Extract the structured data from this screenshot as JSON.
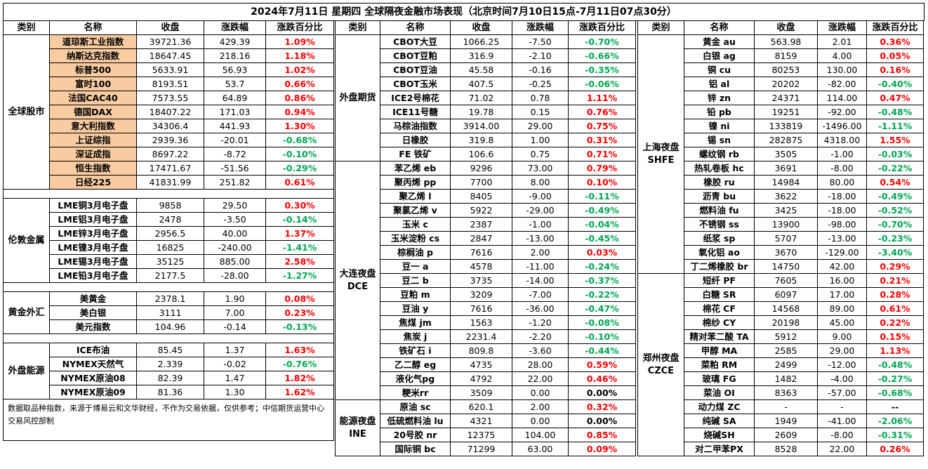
{
  "title": "2024年7月11日 星期四 全球隔夜金融市场表现（北京时间7月10日15点-7月11日07点30分）",
  "headers": [
    "类别",
    "名称",
    "收盘",
    "涨跌幅",
    "涨跌百分比"
  ],
  "colors": {
    "up": "#ff0000",
    "down": "#00a651",
    "highlight": "#f8cba1"
  },
  "left": {
    "groups": [
      {
        "category": "全球股市",
        "highlight": true,
        "rows": [
          {
            "name": "道琼斯工业指数",
            "close": "39721.36",
            "change": "429.39",
            "pct": "1.09%",
            "dir": "up"
          },
          {
            "name": "纳斯达克指数",
            "close": "18647.45",
            "change": "218.16",
            "pct": "1.18%",
            "dir": "up"
          },
          {
            "name": "标普500",
            "close": "5633.91",
            "change": "56.93",
            "pct": "1.02%",
            "dir": "up"
          },
          {
            "name": "富时100",
            "close": "8193.51",
            "change": "53.7",
            "pct": "0.66%",
            "dir": "up"
          },
          {
            "name": "法国CAC40",
            "close": "7573.55",
            "change": "64.89",
            "pct": "0.86%",
            "dir": "up"
          },
          {
            "name": "德国DAX",
            "close": "18407.22",
            "change": "171.03",
            "pct": "0.94%",
            "dir": "up"
          },
          {
            "name": "意大利指数",
            "close": "34306.4",
            "change": "441.93",
            "pct": "1.30%",
            "dir": "up"
          },
          {
            "name": "上证综指",
            "close": "2939.36",
            "change": "-20.01",
            "pct": "-0.68%",
            "dir": "down"
          },
          {
            "name": "深证成指",
            "close": "8697.22",
            "change": "-8.72",
            "pct": "-0.10%",
            "dir": "down"
          },
          {
            "name": "恒生指数",
            "close": "17471.67",
            "change": "-51.56",
            "pct": "-0.29%",
            "dir": "down"
          },
          {
            "name": "日经225",
            "close": "41831.99",
            "change": "251.82",
            "pct": "0.61%",
            "dir": "up"
          }
        ]
      },
      {
        "category": "伦敦金属",
        "highlight": false,
        "rows": [
          {
            "name": "LME铜3月电子盘",
            "close": "9858",
            "change": "29.50",
            "pct": "0.30%",
            "dir": "up"
          },
          {
            "name": "LME铝3月电子盘",
            "close": "2478",
            "change": "-3.50",
            "pct": "-0.14%",
            "dir": "down"
          },
          {
            "name": "LME锌3月电子盘",
            "close": "2956.5",
            "change": "40.00",
            "pct": "1.37%",
            "dir": "up"
          },
          {
            "name": "LME镍3月电子盘",
            "close": "16825",
            "change": "-240.00",
            "pct": "-1.41%",
            "dir": "down"
          },
          {
            "name": "LME锡3月电子盘",
            "close": "35125",
            "change": "885.00",
            "pct": "2.58%",
            "dir": "up"
          },
          {
            "name": "LME铅3月电子盘",
            "close": "2177.5",
            "change": "-28.00",
            "pct": "-1.27%",
            "dir": "down"
          }
        ]
      },
      {
        "category": "黄金外汇",
        "highlight": false,
        "rows": [
          {
            "name": "美黄金",
            "close": "2378.1",
            "change": "1.90",
            "pct": "0.08%",
            "dir": "up"
          },
          {
            "name": "美白银",
            "close": "3111",
            "change": "7.00",
            "pct": "0.23%",
            "dir": "up"
          },
          {
            "name": "美元指数",
            "close": "104.96",
            "change": "-0.14",
            "pct": "-0.13%",
            "dir": "down"
          }
        ]
      },
      {
        "category": "外盘能源",
        "highlight": false,
        "rows": [
          {
            "name": "ICE布油",
            "close": "85.45",
            "change": "1.37",
            "pct": "1.63%",
            "dir": "up"
          },
          {
            "name": "NYMEX天然气",
            "close": "2.339",
            "change": "-0.02",
            "pct": "-0.76%",
            "dir": "down"
          },
          {
            "name": "NYMEX原油08",
            "close": "82.39",
            "change": "1.47",
            "pct": "1.82%",
            "dir": "up"
          },
          {
            "name": "NYMEX原油09",
            "close": "81.36",
            "change": "1.30",
            "pct": "1.62%",
            "dir": "up"
          }
        ]
      }
    ],
    "note": "数据取品种指数，来源于博易云和文华财经，不作为交易依据，仅供参考；中信期货运营中心交易风控部制"
  },
  "middle": {
    "groups": [
      {
        "category": "外盘期货",
        "rows": [
          {
            "name": "CBOT大豆",
            "close": "1066.25",
            "change": "-7.50",
            "pct": "-0.70%",
            "dir": "down"
          },
          {
            "name": "CBOT豆粕",
            "close": "316.9",
            "change": "-2.10",
            "pct": "-0.66%",
            "dir": "down"
          },
          {
            "name": "CBOT豆油",
            "close": "45.58",
            "change": "-0.16",
            "pct": "-0.35%",
            "dir": "down"
          },
          {
            "name": "CBOT玉米",
            "close": "407.5",
            "change": "-0.25",
            "pct": "-0.06%",
            "dir": "down"
          },
          {
            "name": "ICE2号棉花",
            "close": "71.02",
            "change": "0.78",
            "pct": "1.11%",
            "dir": "up"
          },
          {
            "name": "ICE11号糖",
            "close": "19.78",
            "change": "0.15",
            "pct": "0.76%",
            "dir": "up"
          },
          {
            "name": "马棕油指数",
            "close": "3914.00",
            "change": "29.00",
            "pct": "0.75%",
            "dir": "up"
          },
          {
            "name": "日橡胶",
            "close": "319.8",
            "change": "1.00",
            "pct": "0.31%",
            "dir": "up"
          },
          {
            "name": "FE 铁矿",
            "close": "106.6",
            "change": "0.75",
            "pct": "0.71%",
            "dir": "up"
          }
        ]
      },
      {
        "category": "大连夜盘",
        "category2": "DCE",
        "rows": [
          {
            "name": "苯乙烯 eb",
            "close": "9296",
            "change": "73.00",
            "pct": "0.79%",
            "dir": "up"
          },
          {
            "name": "聚丙烯 pp",
            "close": "7700",
            "change": "8.00",
            "pct": "0.10%",
            "dir": "up"
          },
          {
            "name": "聚乙烯 l",
            "close": "8405",
            "change": "-9.00",
            "pct": "-0.11%",
            "dir": "down"
          },
          {
            "name": "聚氯乙烯 v",
            "close": "5922",
            "change": "-29.00",
            "pct": "-0.49%",
            "dir": "down"
          },
          {
            "name": "玉米 c",
            "close": "2387",
            "change": "-1.00",
            "pct": "-0.04%",
            "dir": "down"
          },
          {
            "name": "玉米淀粉 cs",
            "close": "2847",
            "change": "-13.00",
            "pct": "-0.45%",
            "dir": "down"
          },
          {
            "name": "棕榈油 p",
            "close": "7616",
            "change": "2.00",
            "pct": "0.03%",
            "dir": "up"
          },
          {
            "name": "豆一 a",
            "close": "4578",
            "change": "-11.00",
            "pct": "-0.24%",
            "dir": "down"
          },
          {
            "name": "豆二 b",
            "close": "3735",
            "change": "-14.00",
            "pct": "-0.37%",
            "dir": "down"
          },
          {
            "name": "豆粕 m",
            "close": "3209",
            "change": "-7.00",
            "pct": "-0.22%",
            "dir": "down"
          },
          {
            "name": "豆油 y",
            "close": "7616",
            "change": "-36.00",
            "pct": "-0.47%",
            "dir": "down"
          },
          {
            "name": "焦煤 jm",
            "close": "1563",
            "change": "-1.20",
            "pct": "-0.08%",
            "dir": "down"
          },
          {
            "name": "焦炭 j",
            "close": "2231.4",
            "change": "-2.20",
            "pct": "-0.10%",
            "dir": "down"
          },
          {
            "name": "铁矿石 i",
            "close": "809.8",
            "change": "-3.60",
            "pct": "-0.44%",
            "dir": "down"
          },
          {
            "name": "乙二醇 eg",
            "close": "4735",
            "change": "28.00",
            "pct": "0.59%",
            "dir": "up"
          },
          {
            "name": "液化气pg",
            "close": "4792",
            "change": "22.00",
            "pct": "0.46%",
            "dir": "up"
          },
          {
            "name": "粳米rr",
            "close": "3509",
            "change": "0.00",
            "pct": "0.00%",
            "dir": "flat"
          }
        ]
      },
      {
        "category": "能源夜盘",
        "category2": "INE",
        "rows": [
          {
            "name": "原油 sc",
            "close": "620.1",
            "change": "2.00",
            "pct": "0.32%",
            "dir": "up"
          },
          {
            "name": "低硫燃料油 lu",
            "close": "4321",
            "change": "0.00",
            "pct": "0.00%",
            "dir": "flat"
          },
          {
            "name": "20号胶 nr",
            "close": "12375",
            "change": "104.00",
            "pct": "0.85%",
            "dir": "up"
          },
          {
            "name": "国际铜 bc",
            "close": "71299",
            "change": "63.00",
            "pct": "0.09%",
            "dir": "up"
          }
        ]
      }
    ]
  },
  "right": {
    "groups": [
      {
        "category": "上海夜盘",
        "category2": "SHFE",
        "rows": [
          {
            "name": "黄金 au",
            "close": "563.98",
            "change": "2.01",
            "pct": "0.36%",
            "dir": "up"
          },
          {
            "name": "白银 ag",
            "close": "8159",
            "change": "4.00",
            "pct": "0.05%",
            "dir": "up"
          },
          {
            "name": "铜 cu",
            "close": "80253",
            "change": "130.00",
            "pct": "0.16%",
            "dir": "up"
          },
          {
            "name": "铝 al",
            "close": "20202",
            "change": "-82.00",
            "pct": "-0.40%",
            "dir": "down"
          },
          {
            "name": "锌 zn",
            "close": "24371",
            "change": "114.00",
            "pct": "0.47%",
            "dir": "up"
          },
          {
            "name": "铅 pb",
            "close": "19251",
            "change": "-92.00",
            "pct": "-0.48%",
            "dir": "down"
          },
          {
            "name": "镍 ni",
            "close": "133819",
            "change": "-1496.00",
            "pct": "-1.11%",
            "dir": "down"
          },
          {
            "name": "锡 sn",
            "close": "282875",
            "change": "4318.00",
            "pct": "1.55%",
            "dir": "up"
          },
          {
            "name": "螺纹钢 rb",
            "close": "3505",
            "change": "-1.00",
            "pct": "-0.03%",
            "dir": "down"
          },
          {
            "name": "热轧卷板 hc",
            "close": "3691",
            "change": "-8.00",
            "pct": "-0.22%",
            "dir": "down"
          },
          {
            "name": "橡胶 ru",
            "close": "14984",
            "change": "80.00",
            "pct": "0.54%",
            "dir": "up"
          },
          {
            "name": "沥青 bu",
            "close": "3622",
            "change": "-18.00",
            "pct": "-0.49%",
            "dir": "down"
          },
          {
            "name": "燃料油 fu",
            "close": "3425",
            "change": "-18.00",
            "pct": "-0.52%",
            "dir": "down"
          },
          {
            "name": "不锈钢 ss",
            "close": "13900",
            "change": "-98.00",
            "pct": "-0.70%",
            "dir": "down"
          },
          {
            "name": "纸浆 sp",
            "close": "5707",
            "change": "-13.00",
            "pct": "-0.23%",
            "dir": "down"
          },
          {
            "name": "氧化铝 ao",
            "close": "3670",
            "change": "-129.00",
            "pct": "-3.40%",
            "dir": "down"
          },
          {
            "name": "丁二烯橡胶 br",
            "close": "14750",
            "change": "42.00",
            "pct": "0.29%",
            "dir": "up"
          }
        ]
      },
      {
        "category": "郑州夜盘",
        "category2": "CZCE",
        "rows": [
          {
            "name": "短纤 PF",
            "close": "7605",
            "change": "16.00",
            "pct": "0.21%",
            "dir": "up"
          },
          {
            "name": "白糖 SR",
            "close": "6097",
            "change": "17.00",
            "pct": "0.28%",
            "dir": "up"
          },
          {
            "name": "棉花 CF",
            "close": "14568",
            "change": "89.00",
            "pct": "0.61%",
            "dir": "up"
          },
          {
            "name": "棉纱 CY",
            "close": "20198",
            "change": "45.00",
            "pct": "0.22%",
            "dir": "up"
          },
          {
            "name": "精对苯二酸 TA",
            "close": "5912",
            "change": "9.00",
            "pct": "0.15%",
            "dir": "up"
          },
          {
            "name": "甲醇 MA",
            "close": "2585",
            "change": "29.00",
            "pct": "1.13%",
            "dir": "up"
          },
          {
            "name": "菜粕 RM",
            "close": "2499",
            "change": "-12.00",
            "pct": "-0.48%",
            "dir": "down"
          },
          {
            "name": "玻璃 FG",
            "close": "1482",
            "change": "-4.00",
            "pct": "-0.27%",
            "dir": "down"
          },
          {
            "name": "菜油 OI",
            "close": "8363",
            "change": "-57.00",
            "pct": "-0.68%",
            "dir": "down"
          },
          {
            "name": "动力煤 ZC",
            "close": "-",
            "change": "-",
            "pct": "--",
            "dir": "flat"
          },
          {
            "name": "纯碱 SA",
            "close": "1949",
            "change": "-41.00",
            "pct": "-2.06%",
            "dir": "down"
          },
          {
            "name": "烧碱SH",
            "close": "2609",
            "change": "-8.00",
            "pct": "-0.31%",
            "dir": "down"
          },
          {
            "name": "对二甲苯PX",
            "close": "8528",
            "change": "22.00",
            "pct": "0.26%",
            "dir": "up"
          }
        ]
      }
    ]
  }
}
